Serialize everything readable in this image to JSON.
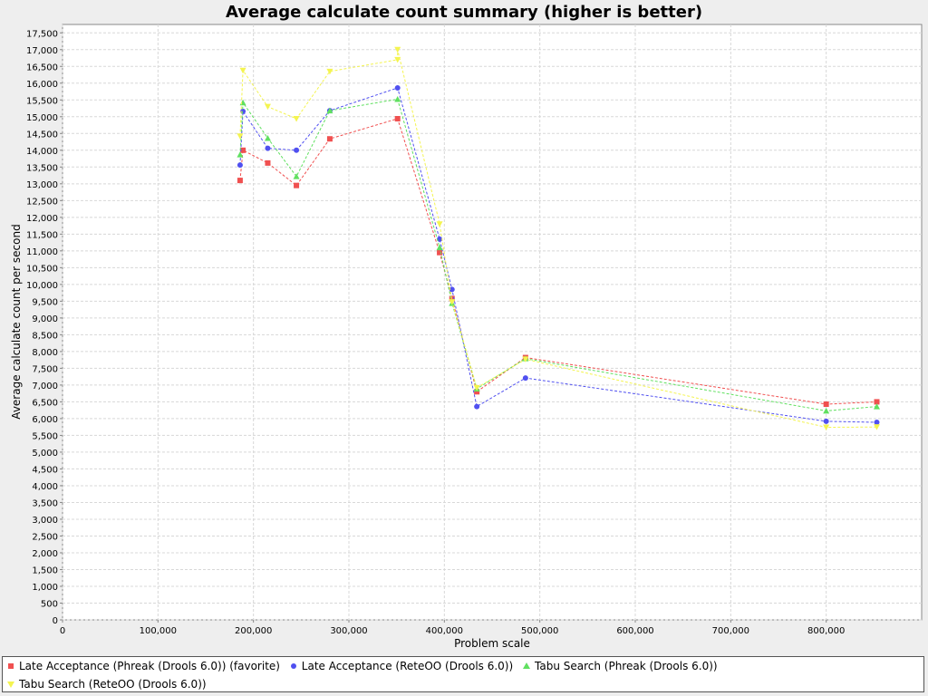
{
  "chart_data": {
    "type": "line",
    "title": "Average calculate count summary (higher is better)",
    "xlabel": "Problem scale",
    "ylabel": "Average calculate count per second",
    "xlim": [
      0,
      900000
    ],
    "ylim": [
      0,
      17750
    ],
    "x_ticks": [
      0,
      100000,
      200000,
      300000,
      400000,
      500000,
      600000,
      700000,
      800000
    ],
    "x_tick_labels": [
      "0",
      "100,000",
      "200,000",
      "300,000",
      "400,000",
      "500,000",
      "600,000",
      "700,000",
      "800,000"
    ],
    "y_ticks": [
      0,
      500,
      1000,
      1500,
      2000,
      2500,
      3000,
      3500,
      4000,
      4500,
      5000,
      5500,
      6000,
      6500,
      7000,
      7500,
      8000,
      8500,
      9000,
      9500,
      10000,
      10500,
      11000,
      11500,
      12000,
      12500,
      13000,
      13500,
      14000,
      14500,
      15000,
      15500,
      16000,
      16500,
      17000,
      17500
    ],
    "y_tick_labels": [
      "0",
      "500",
      "1,000",
      "1,500",
      "2,000",
      "2,500",
      "3,000",
      "3,500",
      "4,000",
      "4,500",
      "5,000",
      "5,500",
      "6,000",
      "6,500",
      "7,000",
      "7,500",
      "8,000",
      "8,500",
      "9,000",
      "9,500",
      "10,000",
      "10,500",
      "11,000",
      "11,500",
      "12,000",
      "12,500",
      "13,000",
      "13,500",
      "14,000",
      "14,500",
      "15,000",
      "15,500",
      "16,000",
      "16,500",
      "17,000",
      "17,500"
    ],
    "grid": true,
    "legend_position": "bottom",
    "series": [
      {
        "name": "Late Acceptance (Phreak (Drools 6.0)) (favorite)",
        "color": "#f05050",
        "marker": "square",
        "x": [
          186000,
          189000,
          215000,
          245000,
          280000,
          351000,
          395000,
          408000,
          434000,
          485000,
          800000,
          853000
        ],
        "y": [
          13100,
          14000,
          13620,
          12950,
          14340,
          14940,
          10950,
          9580,
          6800,
          7820,
          6430,
          6500
        ]
      },
      {
        "name": "Late Acceptance (ReteOO (Drools 6.0))",
        "color": "#5050f0",
        "marker": "circle",
        "x": [
          186000,
          189000,
          215000,
          245000,
          280000,
          351000,
          395000,
          408000,
          434000,
          485000,
          800000,
          853000
        ],
        "y": [
          13560,
          15160,
          14060,
          14000,
          15180,
          15860,
          11350,
          9850,
          6360,
          7210,
          5920,
          5890
        ]
      },
      {
        "name": "Tabu Search (Phreak (Drools 6.0))",
        "color": "#60e060",
        "marker": "triangle",
        "x": [
          186000,
          189000,
          215000,
          245000,
          280000,
          351000,
          395000,
          408000,
          434000,
          485000,
          800000,
          853000
        ],
        "y": [
          13870,
          15420,
          14360,
          13220,
          15180,
          15520,
          11100,
          9440,
          6890,
          7790,
          6230,
          6360
        ]
      },
      {
        "name": "Tabu Search (ReteOO (Drools 6.0))",
        "color": "#f4f450",
        "marker": "triangle-down",
        "x": [
          186000,
          189000,
          215000,
          245000,
          280000,
          351000,
          351000,
          395000,
          408000,
          434000,
          485000,
          800000,
          853000
        ],
        "y": [
          14420,
          16380,
          15300,
          14940,
          16350,
          16700,
          17000,
          11800,
          9480,
          6920,
          7770,
          5740,
          5750
        ]
      }
    ]
  }
}
